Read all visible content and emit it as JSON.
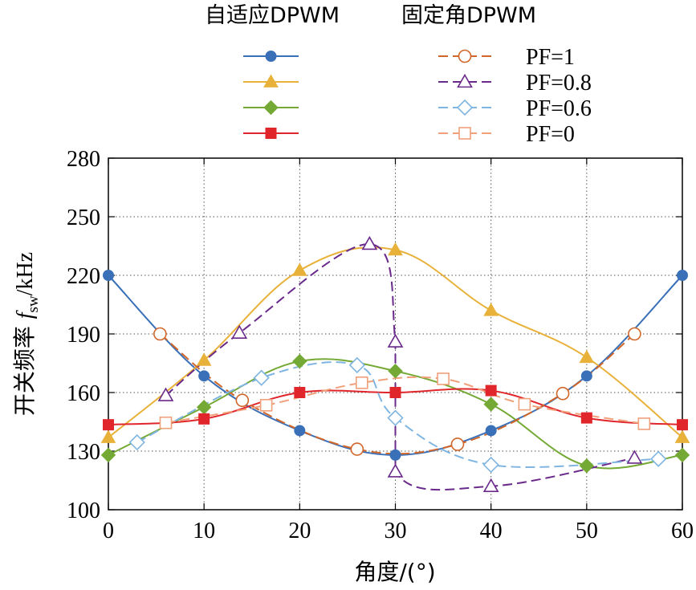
{
  "legend": {
    "header_left": "自适应DPWM",
    "header_right": "固定角DPWM",
    "rows": [
      "PF=1",
      "PF=0.8",
      "PF=0.6",
      "PF=0"
    ]
  },
  "axes": {
    "ylabel_main": "开关频率 ",
    "ylabel_var": "f",
    "ylabel_sub": "sw",
    "ylabel_unit": "/kHz",
    "xlabel": "角度/(°)"
  },
  "chart_data": {
    "type": "line",
    "xlabel": "角度/(°)",
    "ylabel": "开关频率 fsw/kHz",
    "xlim": [
      0,
      60
    ],
    "ylim": [
      100,
      280
    ],
    "xticks": [
      0,
      10,
      20,
      30,
      40,
      50,
      60
    ],
    "yticks": [
      100,
      130,
      160,
      190,
      220,
      250,
      280
    ],
    "grid": true,
    "legend_position": "top",
    "series": [
      {
        "name": "PF=1",
        "group": "自适应DPWM",
        "color": "#3a70b8",
        "marker": "circle",
        "filled": true,
        "dashed": false,
        "x": [
          0,
          10,
          20,
          30,
          40,
          50,
          60
        ],
        "y": [
          220,
          168.5,
          140.5,
          128,
          140.5,
          168.5,
          220
        ]
      },
      {
        "name": "PF=0.8",
        "group": "自适应DPWM",
        "color": "#e8b23a",
        "marker": "triangle",
        "filled": true,
        "dashed": false,
        "x": [
          0,
          10,
          20,
          30,
          40,
          50,
          60
        ],
        "y": [
          137,
          176.5,
          222.5,
          233,
          202,
          178,
          137
        ]
      },
      {
        "name": "PF=0.6",
        "group": "自适应DPWM",
        "color": "#74a935",
        "marker": "diamond",
        "filled": true,
        "dashed": false,
        "x": [
          0,
          10,
          20,
          30,
          40,
          50,
          60
        ],
        "y": [
          128,
          152.5,
          176,
          171,
          154,
          122.5,
          128
        ]
      },
      {
        "name": "PF=0",
        "group": "自适应DPWM",
        "color": "#e0262b",
        "marker": "square",
        "filled": true,
        "dashed": false,
        "x": [
          0,
          10,
          20,
          30,
          40,
          50,
          60
        ],
        "y": [
          143.5,
          146.5,
          160,
          160,
          161,
          147,
          143.5
        ]
      },
      {
        "name": "PF=1",
        "group": "固定角DPWM",
        "color": "#d0662a",
        "marker": "circle",
        "filled": false,
        "dashed": true,
        "x": [
          5.4,
          14,
          26,
          36.5,
          47.5,
          55
        ],
        "y": [
          190,
          156,
          131,
          133.5,
          159.5,
          190
        ]
      },
      {
        "name": "PF=0.8",
        "group": "固定角DPWM",
        "color": "#6a2a8a",
        "marker": "triangle",
        "filled": false,
        "dashed": true,
        "x": [
          6,
          13.7,
          27.3,
          30,
          30,
          40,
          55
        ],
        "y": [
          158.5,
          190.5,
          236,
          186,
          119.5,
          112,
          126.5
        ]
      },
      {
        "name": "PF=0.6",
        "group": "固定角DPWM",
        "color": "#7fb5e1",
        "marker": "diamond",
        "filled": false,
        "dashed": true,
        "x": [
          3,
          16,
          26,
          30,
          40,
          57.5
        ],
        "y": [
          134.5,
          167.5,
          174,
          147,
          123,
          126
        ]
      },
      {
        "name": "PF=0",
        "group": "固定角DPWM",
        "color": "#f0a07a",
        "marker": "square",
        "filled": false,
        "dashed": true,
        "x": [
          6,
          16.5,
          26.5,
          35,
          43.5,
          56
        ],
        "y": [
          144.5,
          153.5,
          165,
          167,
          154,
          144
        ]
      }
    ]
  }
}
